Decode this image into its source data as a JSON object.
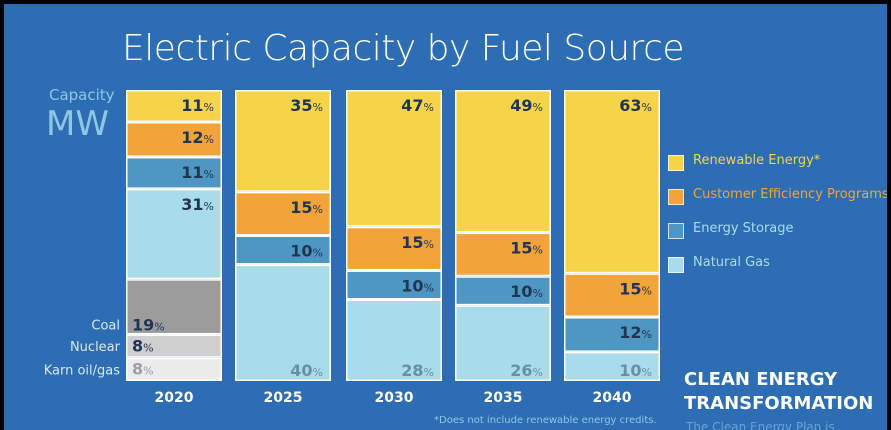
{
  "title": "Electric Capacity by Fuel Source",
  "y_label_top": "Capacity",
  "y_label_unit": "MW",
  "colors": {
    "background": "#2c6db4",
    "renewable": "#f6d44a",
    "efficiency": "#f2a33a",
    "storage": "#4f97c3",
    "natural_gas": "#a9dcea",
    "coal": "#9c9c9c",
    "nuclear": "#cfcfcf",
    "karn": "#ececec"
  },
  "legend": [
    {
      "label": "Renewable Energy*",
      "color": "#f6d44a",
      "text_color": "#f6d44a"
    },
    {
      "label": "Customer Efficiency Programs",
      "color": "#f2a33a",
      "text_color": "#f2a33a"
    },
    {
      "label": "Energy Storage",
      "color": "#4f97c3",
      "text_color": "#a9dcea"
    },
    {
      "label": "Natural Gas",
      "color": "#a9dcea",
      "text_color": "#a9dcea"
    }
  ],
  "headline": [
    "CLEAN ENERGY",
    "TRANSFORMATION"
  ],
  "subtext": "The Clean Energy Plan is",
  "footnote": "*Does not include renewable energy credits.",
  "chart_data": {
    "type": "bar",
    "stacked": true,
    "unit": "%",
    "ylabel": "Capacity MW",
    "categories": [
      "2020",
      "2025",
      "2030",
      "2035",
      "2040"
    ],
    "series": [
      {
        "name": "Karn oil/gas",
        "values": [
          8,
          null,
          null,
          null,
          null
        ]
      },
      {
        "name": "Nuclear",
        "values": [
          8,
          null,
          null,
          null,
          null
        ]
      },
      {
        "name": "Coal",
        "values": [
          19,
          null,
          null,
          null,
          null
        ]
      },
      {
        "name": "Natural Gas",
        "values": [
          31,
          40,
          28,
          26,
          10
        ]
      },
      {
        "name": "Energy Storage",
        "values": [
          11,
          10,
          10,
          10,
          12
        ]
      },
      {
        "name": "Customer Efficiency Programs",
        "values": [
          12,
          15,
          15,
          15,
          15
        ]
      },
      {
        "name": "Renewable Energy*",
        "values": [
          11,
          35,
          47,
          49,
          63
        ]
      }
    ],
    "ylim": [
      0,
      100
    ],
    "grid": false,
    "legend_position": "right"
  }
}
